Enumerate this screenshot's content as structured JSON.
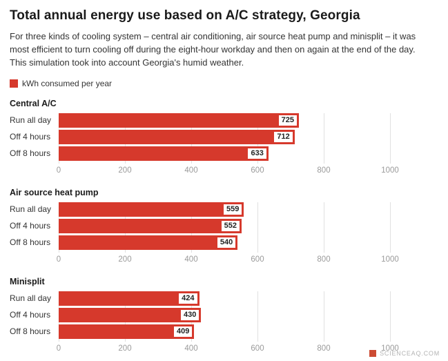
{
  "header": {
    "title": "Total annual energy use based on A/C strategy, Georgia",
    "description": "For three kinds of cooling system – central air conditioning, air source heat pump and minisplit – it was most efficient to turn cooling off during the eight-hour workday and then on again at the end of the day. This simulation took into account Georgia's humid weather."
  },
  "legend": {
    "label": "kWh consumed per year",
    "color": "#d6392c"
  },
  "chart_data": {
    "type": "bar",
    "orientation": "horizontal",
    "title": "Total annual energy use based on A/C strategy, Georgia",
    "series_label": "kWh consumed per year",
    "bar_color": "#d6392c",
    "categories": [
      "Run all day",
      "Off 4 hours",
      "Off 8 hours"
    ],
    "xlim": [
      0,
      1000
    ],
    "ticks": [
      0,
      200,
      400,
      600,
      800,
      1000
    ],
    "grid": true,
    "groups": [
      {
        "title": "Central A/C",
        "values": [
          725,
          712,
          633
        ]
      },
      {
        "title": "Air source heat pump",
        "values": [
          559,
          552,
          540
        ]
      },
      {
        "title": "Minisplit",
        "values": [
          424,
          430,
          409
        ]
      }
    ]
  },
  "footer": {
    "watermark": "SCIENCEAQ.COM",
    "watermark_color": "#cc4b33"
  }
}
